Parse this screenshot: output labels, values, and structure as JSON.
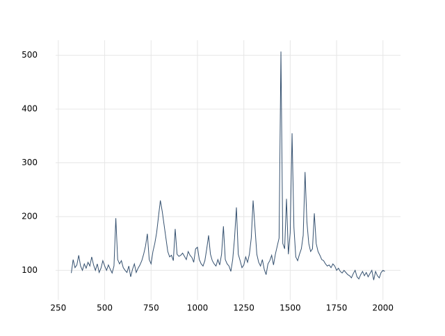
{
  "chart_data": {
    "type": "line",
    "x": [
      320,
      330,
      340,
      350,
      360,
      370,
      380,
      390,
      400,
      410,
      420,
      430,
      440,
      450,
      460,
      470,
      480,
      490,
      500,
      510,
      520,
      530,
      540,
      550,
      560,
      570,
      580,
      590,
      600,
      610,
      620,
      630,
      640,
      650,
      660,
      670,
      680,
      690,
      700,
      710,
      720,
      730,
      740,
      750,
      760,
      770,
      780,
      790,
      800,
      810,
      820,
      830,
      840,
      850,
      860,
      870,
      880,
      890,
      900,
      910,
      920,
      930,
      940,
      950,
      960,
      970,
      980,
      990,
      1000,
      1010,
      1020,
      1030,
      1040,
      1050,
      1060,
      1070,
      1080,
      1090,
      1100,
      1110,
      1120,
      1130,
      1140,
      1150,
      1160,
      1170,
      1180,
      1190,
      1200,
      1210,
      1220,
      1230,
      1240,
      1250,
      1260,
      1270,
      1280,
      1290,
      1300,
      1310,
      1320,
      1330,
      1340,
      1350,
      1360,
      1370,
      1380,
      1390,
      1400,
      1410,
      1420,
      1430,
      1440,
      1450,
      1460,
      1470,
      1480,
      1490,
      1500,
      1510,
      1520,
      1530,
      1540,
      1550,
      1560,
      1570,
      1580,
      1590,
      1600,
      1610,
      1620,
      1630,
      1640,
      1650,
      1660,
      1670,
      1680,
      1690,
      1700,
      1710,
      1720,
      1730,
      1740,
      1750,
      1760,
      1770,
      1780,
      1790,
      1800,
      1810,
      1820,
      1830,
      1840,
      1850,
      1860,
      1870,
      1880,
      1890,
      1900,
      1910,
      1920,
      1930,
      1940,
      1950,
      1960,
      1970,
      1980,
      1990,
      2000,
      2010
    ],
    "series": [
      {
        "color": "#34506f",
        "values": [
          95,
          120,
          105,
          110,
          128,
          108,
          100,
          112,
          104,
          115,
          108,
          125,
          110,
          100,
          112,
          96,
          104,
          118,
          108,
          100,
          110,
          102,
          95,
          108,
          197,
          120,
          112,
          118,
          105,
          100,
          96,
          108,
          88,
          102,
          112,
          96,
          104,
          110,
          118,
          130,
          145,
          168,
          120,
          112,
          135,
          150,
          170,
          200,
          230,
          210,
          185,
          160,
          135,
          125,
          128,
          118,
          177,
          130,
          126,
          128,
          132,
          126,
          120,
          135,
          128,
          124,
          115,
          140,
          143,
          120,
          112,
          108,
          118,
          140,
          165,
          130,
          118,
          112,
          108,
          120,
          110,
          130,
          182,
          120,
          112,
          108,
          98,
          120,
          160,
          217,
          130,
          118,
          105,
          110,
          125,
          115,
          130,
          160,
          230,
          180,
          130,
          115,
          108,
          120,
          102,
          92,
          112,
          118,
          128,
          110,
          130,
          145,
          160,
          507,
          150,
          140,
          233,
          130,
          170,
          355,
          180,
          125,
          118,
          130,
          140,
          165,
          283,
          190,
          150,
          135,
          140,
          206,
          150,
          135,
          128,
          120,
          118,
          112,
          108,
          110,
          105,
          112,
          108,
          100,
          104,
          98,
          95,
          100,
          96,
          92,
          90,
          86,
          94,
          100,
          88,
          84,
          92,
          98,
          90,
          96,
          88,
          94,
          100,
          82,
          98,
          90,
          86,
          96,
          100,
          98
        ]
      }
    ],
    "xlim": [
      235.5,
      2094.5
    ],
    "ylim": [
      45,
      528
    ],
    "xticks": [
      250,
      500,
      750,
      1000,
      1250,
      1500,
      1750,
      2000
    ],
    "yticks": [
      100,
      200,
      300,
      400,
      500
    ],
    "grid": true
  }
}
